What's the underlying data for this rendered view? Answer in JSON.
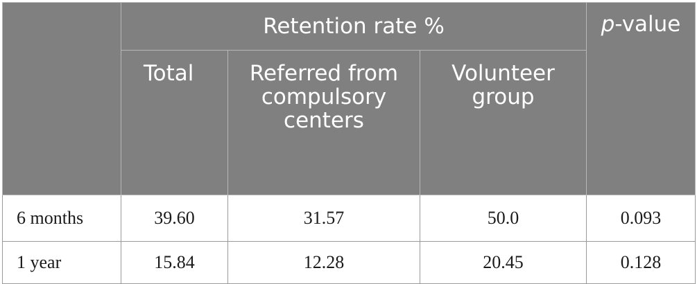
{
  "table": {
    "header": {
      "group_label": "Retention rate %",
      "pvalue_label_prefix": "p",
      "pvalue_label_rest": "-value",
      "columns": [
        "Total",
        "Referred from compulsory centers",
        "Volunteer group"
      ]
    },
    "rows": [
      {
        "label": "6 months",
        "total": "39.60",
        "referred": "31.57",
        "volunteer": "50.0",
        "p_value": "0.093"
      },
      {
        "label": "1 year",
        "total": "15.84",
        "referred": "12.28",
        "volunteer": "20.45",
        "p_value": "0.128"
      }
    ]
  }
}
